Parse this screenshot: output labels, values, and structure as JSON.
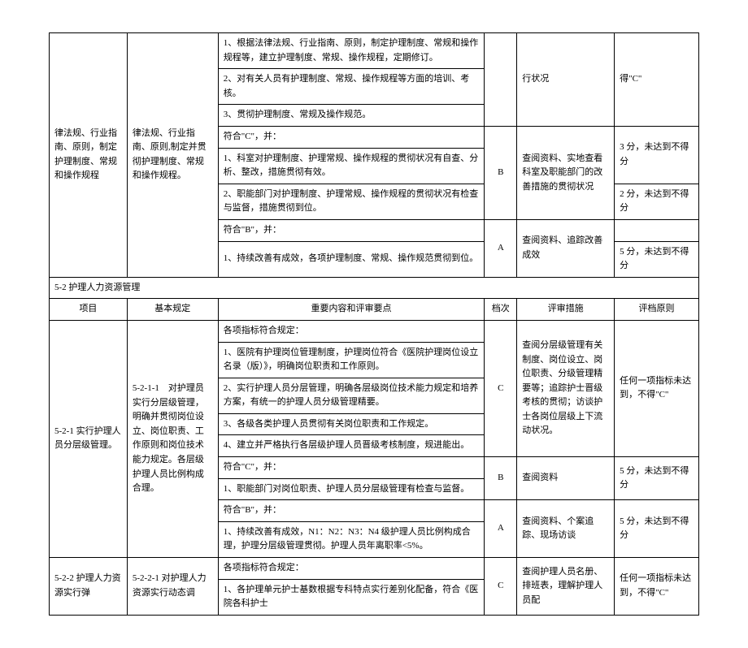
{
  "rows": {
    "r1c1": "律法规、行业指南、原则，制定护理制度、常规和操作规程",
    "r1c2": "律法规、行业指南、原则,制定并贯彻护理制度、常规和操作规程。",
    "r1c3a": "1、根据法律法规、行业指南、原则，制定护理制度、常规和操作规程等，建立护理制度、常规、操作规程，定期修订。",
    "r1c3b": "2、对有关人员有护理制度、常规、操作规程等方面的培训、考核。",
    "r1c3c": "3、贯彻护理制度、常规及操作规范。",
    "r1c5": "行状况",
    "r1c6": "得\"C\"",
    "r2c3a": "符合\"C\"，并：",
    "r2c3b": "1、科室对护理制度、护理常规、操作规程的贯彻状况有自查、分析、整改，措施贯彻有效。",
    "r2c3c": "2、职能部门对护理制度、护理常规、操作规程的贯彻状况有检查与监督，措施贯彻到位。",
    "r2c4": "B",
    "r2c5": "查阅资料、实地查看科室及职能部门的改善措施的贯彻状况",
    "r2c6a": "3 分，未达到不得分",
    "r2c6b": "2 分，未达到不得分",
    "r3c3a": "符合\"B\"，并：",
    "r3c3b": "1、持续改善有成效，各项护理制度、常规、操作规范贯彻到位。",
    "r3c4": "A",
    "r3c5": "查阅资料、追踪改善成效",
    "r3c6": "5 分，未达到不得分",
    "section": "5-2 护理人力资源管理",
    "hdr1": "项目",
    "hdr2": "基本规定",
    "hdr3": "重要内容和评审要点",
    "hdr4": "档次",
    "hdr5": "评审措施",
    "hdr6": "评档原则",
    "s1c1": "5-2-1 实行护理人员分层级管理。",
    "s1c2": "5-2-1-1　对护理员实行分层级管理，明确并贯彻岗位设立、岗位职责、工作原则和岗位技术能力规定。各层级护理人员比例构成合理。",
    "s1c3a": "各项指标符合规定：",
    "s1c3b": "1、医院有护理岗位管理制度，护理岗位符合《医院护理岗位设立名录（版）》，明确岗位职责和工作原则。",
    "s1c3c": "2、实行护理人员分层管理，明确各层级岗位技术能力规定和培养方案，有统一的护理人员分级管理精要。",
    "s1c3d": "3、各级各类护理人员贯彻有关岗位职责和工作规定。",
    "s1c3e": "4、建立并严格执行各层级护理人员晋级考核制度，规进能出。",
    "s1c4": "C",
    "s1c5": "查阅分层级管理有关制度、岗位设立、岗位职责、分级管理精要等；追踪护士晋级考核的贯彻；访谈护士各岗位层级上下流动状况。",
    "s1c6": "任何一项指标未达到，不得\"C\"",
    "s2c3a": "符合\"C\"，并：",
    "s2c3b": "1、职能部门对岗位职责、护理人员分层级管理有检查与监督。",
    "s2c4": "B",
    "s2c5": "查阅资料",
    "s2c6": "5 分，未达到不得分",
    "s3c3a": "符合\"B\"，并：",
    "s3c3b": "1、持续改善有成效，N1：N2：N3：N4 级护理人员比例构成合理，护理分层级管理贯彻。护理人员年离职率<5%。",
    "s3c4": "A",
    "s3c5": "查阅资料、个案追踪、现场访谈",
    "s3c6": "5 分，未达到不得分",
    "s4c1": "5-2-2 护理人力资源实行弹",
    "s4c2": "5-2-2-1 对护理人力资源实行动态调",
    "s4c3a": "各项指标符合规定：",
    "s4c3b": "1、各护理单元护士基数根据专科特点实行差别化配备，符合《医院各科护士",
    "s4c4": "C",
    "s4c5": "查阅护理人员名册、排班表，理解护理人员配",
    "s4c6": "任何一项指标未达到，不得\"C\""
  }
}
